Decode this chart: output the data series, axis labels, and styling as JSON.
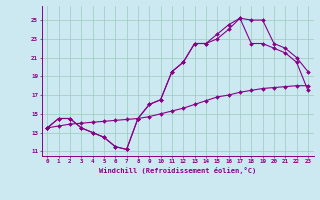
{
  "title": "",
  "xlabel": "Windchill (Refroidissement éolien,°C)",
  "bg_color": "#cce8f0",
  "line_color": "#880088",
  "grid_color": "#99ccbb",
  "xlim": [
    -0.5,
    23.5
  ],
  "ylim": [
    10.5,
    26.5
  ],
  "xticks": [
    0,
    1,
    2,
    3,
    4,
    5,
    6,
    7,
    8,
    9,
    10,
    11,
    12,
    13,
    14,
    15,
    16,
    17,
    18,
    19,
    20,
    21,
    22,
    23
  ],
  "yticks": [
    11,
    13,
    15,
    17,
    19,
    21,
    23,
    25
  ],
  "line1_x": [
    0,
    1,
    2,
    3,
    4,
    5,
    6,
    7,
    8,
    9,
    10,
    11,
    12,
    13,
    14,
    15,
    16,
    17,
    18,
    19,
    20,
    21,
    22,
    23
  ],
  "line1_y": [
    13.5,
    14.5,
    14.5,
    13.5,
    13.0,
    12.5,
    11.5,
    11.2,
    14.5,
    16.0,
    16.5,
    19.5,
    20.5,
    22.5,
    22.5,
    23.5,
    24.5,
    25.2,
    25.0,
    25.0,
    22.5,
    22.0,
    21.0,
    19.5
  ],
  "line2_x": [
    0,
    1,
    2,
    3,
    4,
    5,
    6,
    7,
    8,
    9,
    10,
    11,
    12,
    13,
    14,
    15,
    16,
    17,
    18,
    19,
    20,
    21,
    22,
    23
  ],
  "line2_y": [
    13.5,
    13.7,
    13.9,
    14.0,
    14.1,
    14.2,
    14.3,
    14.4,
    14.5,
    14.7,
    15.0,
    15.3,
    15.6,
    16.0,
    16.4,
    16.8,
    17.0,
    17.3,
    17.5,
    17.7,
    17.8,
    17.9,
    18.0,
    18.0
  ],
  "line3_x": [
    0,
    1,
    2,
    3,
    4,
    5,
    6,
    7,
    8,
    9,
    10,
    11,
    12,
    13,
    14,
    15,
    16,
    17,
    18,
    19,
    20,
    21,
    22,
    23
  ],
  "line3_y": [
    13.5,
    14.5,
    14.5,
    13.5,
    13.0,
    12.5,
    11.5,
    11.2,
    14.5,
    16.0,
    16.5,
    19.5,
    20.5,
    22.5,
    22.5,
    23.0,
    24.0,
    25.2,
    22.5,
    22.5,
    22.0,
    21.5,
    20.5,
    17.5
  ]
}
